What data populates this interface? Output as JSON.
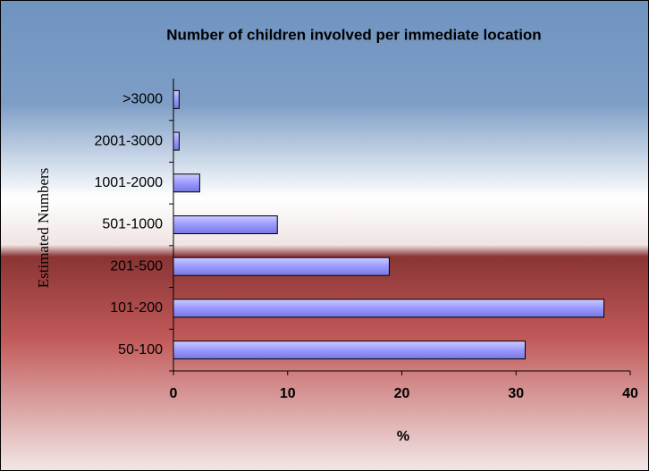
{
  "chart_data": {
    "type": "bar",
    "orientation": "horizontal",
    "title": "Number of children involved per immediate  location",
    "x_label": "%",
    "y_label": "Estimated Numbers",
    "categories": [
      "50-100",
      "101-200",
      "201-500",
      "501-1000",
      "1001-2000",
      "2001-3000",
      ">3000"
    ],
    "values": [
      30.8,
      37.7,
      18.9,
      9.1,
      2.3,
      0.5,
      0.5
    ],
    "color": "#9999ff",
    "xlim": [
      0,
      40
    ],
    "xticks": [
      0,
      10,
      20,
      30,
      40
    ],
    "grid": false
  }
}
